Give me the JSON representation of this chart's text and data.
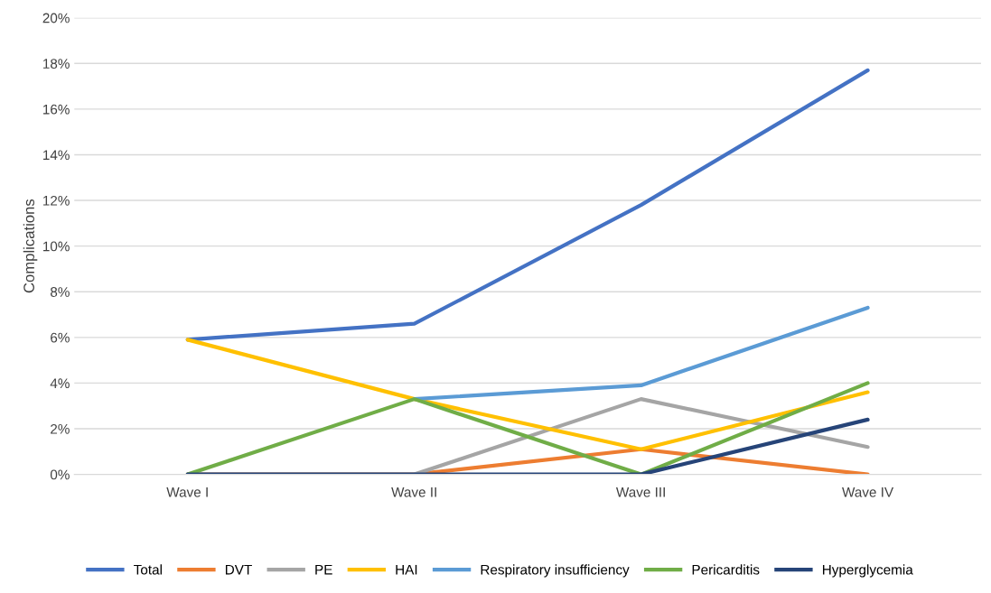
{
  "chart_data": {
    "type": "line",
    "ylabel": "Complications",
    "categories": [
      "Wave I",
      "Wave II",
      "Wave III",
      "Wave IV"
    ],
    "ylim": [
      0,
      20
    ],
    "yticks": [
      {
        "value": 0,
        "label": "0%"
      },
      {
        "value": 2,
        "label": "2%"
      },
      {
        "value": 4,
        "label": "4%"
      },
      {
        "value": 6,
        "label": "6%"
      },
      {
        "value": 8,
        "label": "8%"
      },
      {
        "value": 10,
        "label": "10%"
      },
      {
        "value": 12,
        "label": "12%"
      },
      {
        "value": 14,
        "label": "14%"
      },
      {
        "value": 16,
        "label": "16%"
      },
      {
        "value": 18,
        "label": "18%"
      },
      {
        "value": 20,
        "label": "20%"
      }
    ],
    "grid": "y",
    "legend": "bottom",
    "marker": "none",
    "line_style": "solid",
    "series": [
      {
        "name": "Total",
        "color": "#4472c4",
        "values": [
          5.9,
          6.6,
          11.8,
          17.7
        ]
      },
      {
        "name": "DVT",
        "color": "#ed7d31",
        "values": [
          0,
          0,
          1.1,
          0
        ]
      },
      {
        "name": "PE",
        "color": "#a5a5a5",
        "values": [
          0,
          0,
          3.3,
          1.2
        ]
      },
      {
        "name": "HAI",
        "color": "#ffc000",
        "values": [
          5.9,
          3.3,
          1.1,
          3.6
        ]
      },
      {
        "name": "Respiratory insufficiency",
        "color": "#5b9bd5",
        "values": [
          null,
          3.3,
          3.9,
          7.3
        ]
      },
      {
        "name": "Pericarditis",
        "color": "#70ad47",
        "values": [
          0,
          3.3,
          0,
          4.0
        ]
      },
      {
        "name": "Hyperglycemia",
        "color": "#264478",
        "values": [
          0,
          0,
          0,
          2.4
        ]
      }
    ]
  }
}
